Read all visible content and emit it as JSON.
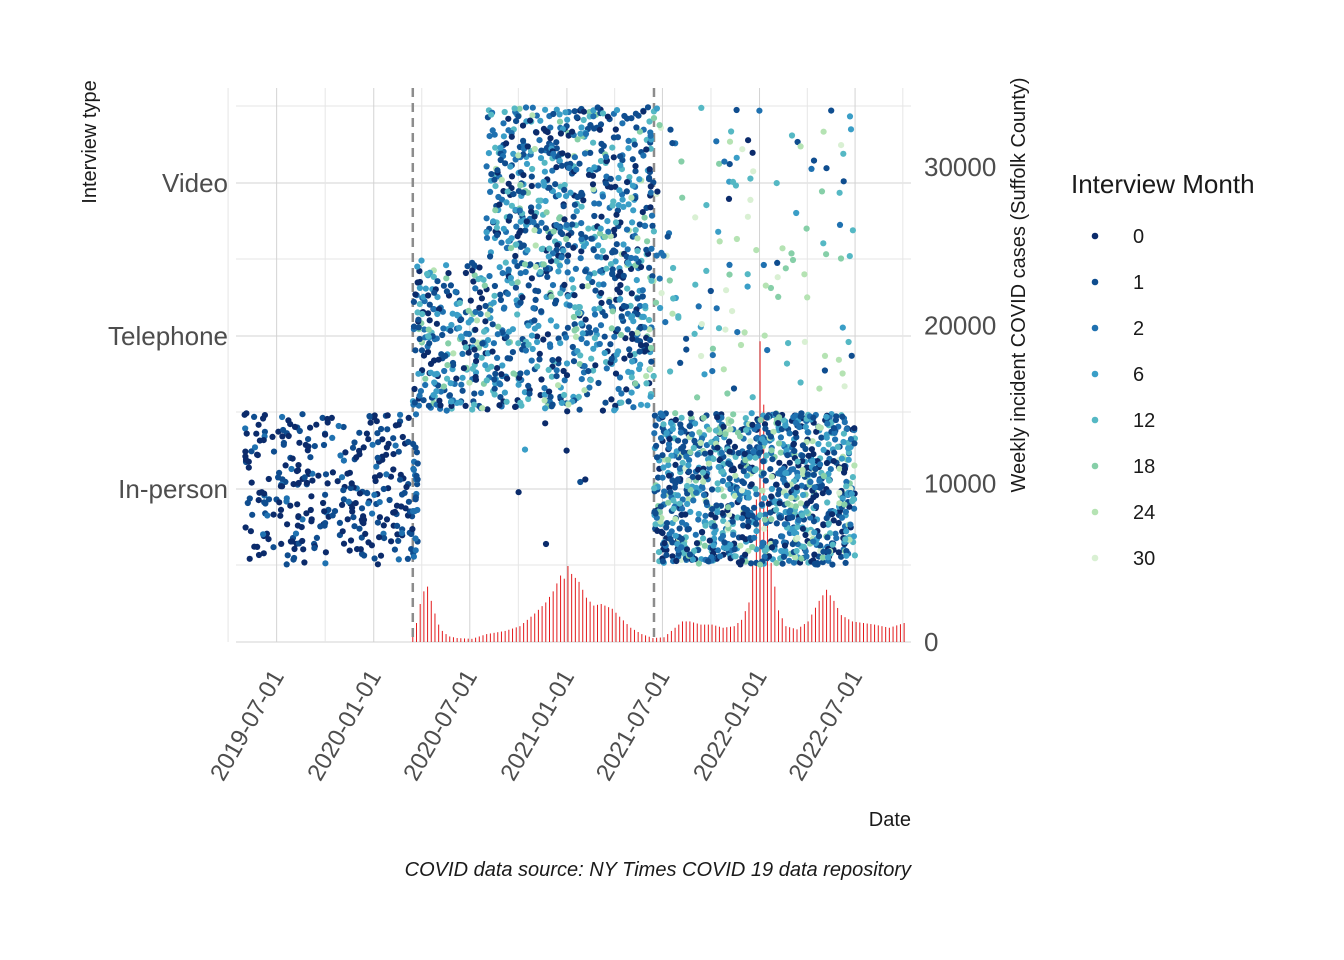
{
  "chart_data": {
    "type": "scatter",
    "caption": "COVID data source: NY Times COVID 19 data repository",
    "xlabel": "Date",
    "ylabel_left": "Interview type",
    "ylabel_right": "Weekly incident COVID cases (Suffolk County)",
    "categories": [
      "In-person",
      "Telephone",
      "Video"
    ],
    "x_ticks": [
      "2019-07-01",
      "2020-01-01",
      "2020-07-01",
      "2021-01-01",
      "2021-07-01",
      "2022-01-01",
      "2022-07-01"
    ],
    "x_range": [
      "2019-04-15",
      "2022-10-15"
    ],
    "y_right_ticks": [
      0,
      10000,
      20000,
      30000
    ],
    "y_right_range": [
      0,
      35000
    ],
    "vertical_lines": [
      "2020-03-15",
      "2021-06-15"
    ],
    "legend": {
      "title": "Interview Month",
      "position": "right",
      "entries": [
        {
          "label": "0",
          "color": "#0b2b6b"
        },
        {
          "label": "1",
          "color": "#0f4d8f"
        },
        {
          "label": "2",
          "color": "#1f71b0"
        },
        {
          "label": "6",
          "color": "#3a9ec7"
        },
        {
          "label": "12",
          "color": "#55b8c4"
        },
        {
          "label": "18",
          "color": "#86cfa8"
        },
        {
          "label": "24",
          "color": "#b5e3b3"
        },
        {
          "label": "30",
          "color": "#d9f0d3"
        }
      ]
    },
    "bar_color": "#e31a1c",
    "point_groups": [
      {
        "category": "In-person",
        "start": "2019-05-01",
        "end": "2020-03-15",
        "count": 320,
        "months": [
          0,
          1,
          2
        ],
        "weights": [
          0.55,
          0.35,
          0.1
        ]
      },
      {
        "category": "In-person",
        "start": "2020-03-15",
        "end": "2020-03-25",
        "count": 25,
        "months": [
          1,
          2
        ],
        "weights": [
          0.5,
          0.5
        ]
      },
      {
        "category": "In-person",
        "start": "2020-10-01",
        "end": "2021-02-15",
        "count": 7,
        "months": [
          0,
          1,
          6
        ],
        "weights": [
          0.5,
          0.3,
          0.2
        ]
      },
      {
        "category": "In-person",
        "start": "2021-06-15",
        "end": "2022-07-01",
        "count": 1100,
        "months": [
          0,
          1,
          2,
          6,
          12,
          18,
          24,
          30
        ],
        "weights": [
          0.16,
          0.22,
          0.2,
          0.18,
          0.11,
          0.07,
          0.04,
          0.02
        ]
      },
      {
        "category": "Telephone",
        "start": "2020-03-15",
        "end": "2021-06-15",
        "count": 700,
        "months": [
          0,
          1,
          2,
          6,
          12,
          18,
          24
        ],
        "weights": [
          0.18,
          0.22,
          0.22,
          0.18,
          0.12,
          0.05,
          0.03
        ]
      },
      {
        "category": "Telephone",
        "start": "2021-06-15",
        "end": "2022-07-01",
        "count": 70,
        "months": [
          1,
          2,
          6,
          12,
          18,
          24,
          30
        ],
        "weights": [
          0.08,
          0.1,
          0.12,
          0.15,
          0.2,
          0.2,
          0.15
        ]
      },
      {
        "category": "Video",
        "start": "2020-08-01",
        "end": "2021-06-15",
        "count": 520,
        "months": [
          0,
          1,
          2,
          6,
          12,
          18,
          24
        ],
        "weights": [
          0.22,
          0.24,
          0.18,
          0.15,
          0.12,
          0.06,
          0.03
        ]
      },
      {
        "category": "Video",
        "start": "2021-06-15",
        "end": "2022-07-01",
        "count": 70,
        "months": [
          0,
          1,
          2,
          6,
          12,
          18,
          24,
          30
        ],
        "weights": [
          0.08,
          0.1,
          0.1,
          0.15,
          0.17,
          0.17,
          0.13,
          0.1
        ]
      }
    ],
    "weekly_cases": {
      "x": [
        "2020-03-15",
        "2020-03-22",
        "2020-03-29",
        "2020-04-05",
        "2020-04-12",
        "2020-04-19",
        "2020-04-26",
        "2020-05-03",
        "2020-05-10",
        "2020-05-17",
        "2020-05-24",
        "2020-06-07",
        "2020-07-05",
        "2020-08-02",
        "2020-09-06",
        "2020-10-04",
        "2020-11-01",
        "2020-11-22",
        "2020-12-06",
        "2020-12-20",
        "2020-12-27",
        "2021-01-03",
        "2021-01-10",
        "2021-01-24",
        "2021-02-07",
        "2021-02-21",
        "2021-03-07",
        "2021-03-28",
        "2021-04-11",
        "2021-05-02",
        "2021-05-23",
        "2021-06-13",
        "2021-07-04",
        "2021-07-25",
        "2021-08-08",
        "2021-08-22",
        "2021-09-12",
        "2021-10-03",
        "2021-10-24",
        "2021-11-14",
        "2021-11-28",
        "2021-12-12",
        "2021-12-19",
        "2021-12-26",
        "2022-01-02",
        "2022-01-09",
        "2022-01-16",
        "2022-01-23",
        "2022-02-06",
        "2022-02-20",
        "2022-03-13",
        "2022-04-03",
        "2022-04-24",
        "2022-05-08",
        "2022-05-22",
        "2022-06-05",
        "2022-06-26",
        "2022-07-17",
        "2022-08-07",
        "2022-09-04",
        "2022-10-02"
      ],
      "y": [
        600,
        1200,
        2400,
        3200,
        3500,
        2600,
        1800,
        1100,
        700,
        500,
        350,
        250,
        200,
        500,
        700,
        1000,
        1800,
        2500,
        3200,
        4200,
        4000,
        4800,
        4300,
        3800,
        2800,
        2300,
        2400,
        2100,
        1600,
        900,
        500,
        250,
        300,
        900,
        1300,
        1300,
        1100,
        1100,
        900,
        1000,
        1400,
        2500,
        5000,
        9000,
        19000,
        15000,
        9000,
        5000,
        2000,
        1000,
        800,
        1300,
        2600,
        3300,
        2600,
        1700,
        1300,
        1200,
        1100,
        900,
        1200
      ]
    }
  }
}
